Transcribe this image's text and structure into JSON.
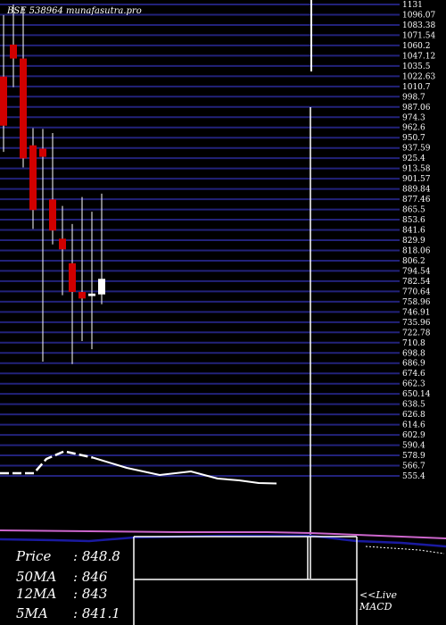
{
  "watermark": "BSE 538964  munafasutra.pro",
  "price_labels": [
    "1131",
    "1096.07",
    "1083.38",
    "1071.54",
    "1060.2",
    "1047.12",
    "1035.5",
    "1022.63",
    "1010.7",
    "998.7",
    "987.06",
    "974.3",
    "962.6",
    "950.7",
    "937.59",
    "925.4",
    "913.58",
    "901.57",
    "889.84",
    "877.46",
    "865.5",
    "853.6",
    "841.6",
    "829.9",
    "818.06",
    "806.2",
    "794.54",
    "782.54",
    "770.64",
    "758.96",
    "746.91",
    "735.96",
    "722.78",
    "710.8",
    "698.8",
    "686.9",
    "674.6",
    "662.3",
    "650.14",
    "638.5",
    "626.8",
    "614.6",
    "602.9",
    "590.4",
    "578.9",
    "566.7",
    "555.4"
  ],
  "info": {
    "price_label": "Price",
    "price_value": ": 848.8",
    "ma50_label": "50MA",
    "ma50_value": ": 846",
    "ma12_label": "12MA",
    "ma12_value": ": 843",
    "ma5_label": "5MA",
    "ma5_value": ": 841.1"
  },
  "footer": {
    "live": "<<Live",
    "macd": "MACD"
  },
  "colors": {
    "background": "#000000",
    "grid": "#22227a",
    "bear_candle": "#d00000",
    "bull_candle": "#ffffff",
    "volume_line": "#ffffff",
    "ma_line": "#cc66cc",
    "macd_line": "#1a1aa0"
  },
  "chart_data": {
    "type": "candlestick",
    "series": [
      {
        "open": 1043,
        "high": 1118,
        "low": 951,
        "close": 983
      },
      {
        "open": 1082,
        "high": 1131,
        "low": 1030,
        "close": 1065
      },
      {
        "open": 1065,
        "high": 1128,
        "low": 932,
        "close": 943
      },
      {
        "open": 959,
        "high": 980,
        "low": 857,
        "close": 880
      },
      {
        "open": 955,
        "high": 979,
        "low": 695,
        "close": 945
      },
      {
        "open": 893,
        "high": 974,
        "low": 838,
        "close": 855
      },
      {
        "open": 845,
        "high": 885,
        "low": 776,
        "close": 832
      },
      {
        "open": 815,
        "high": 863,
        "low": 692,
        "close": 780
      },
      {
        "open": 780,
        "high": 896,
        "low": 720,
        "close": 772
      },
      {
        "open": 775,
        "high": 878,
        "low": 710,
        "close": 778
      },
      {
        "open": 777,
        "high": 900,
        "low": 765,
        "close": 796
      }
    ],
    "volume_line": [
      39,
      39,
      58,
      75,
      61,
      38,
      22,
      30,
      14,
      10,
      4,
      3
    ],
    "ylim": [
      555.4,
      1131
    ]
  }
}
